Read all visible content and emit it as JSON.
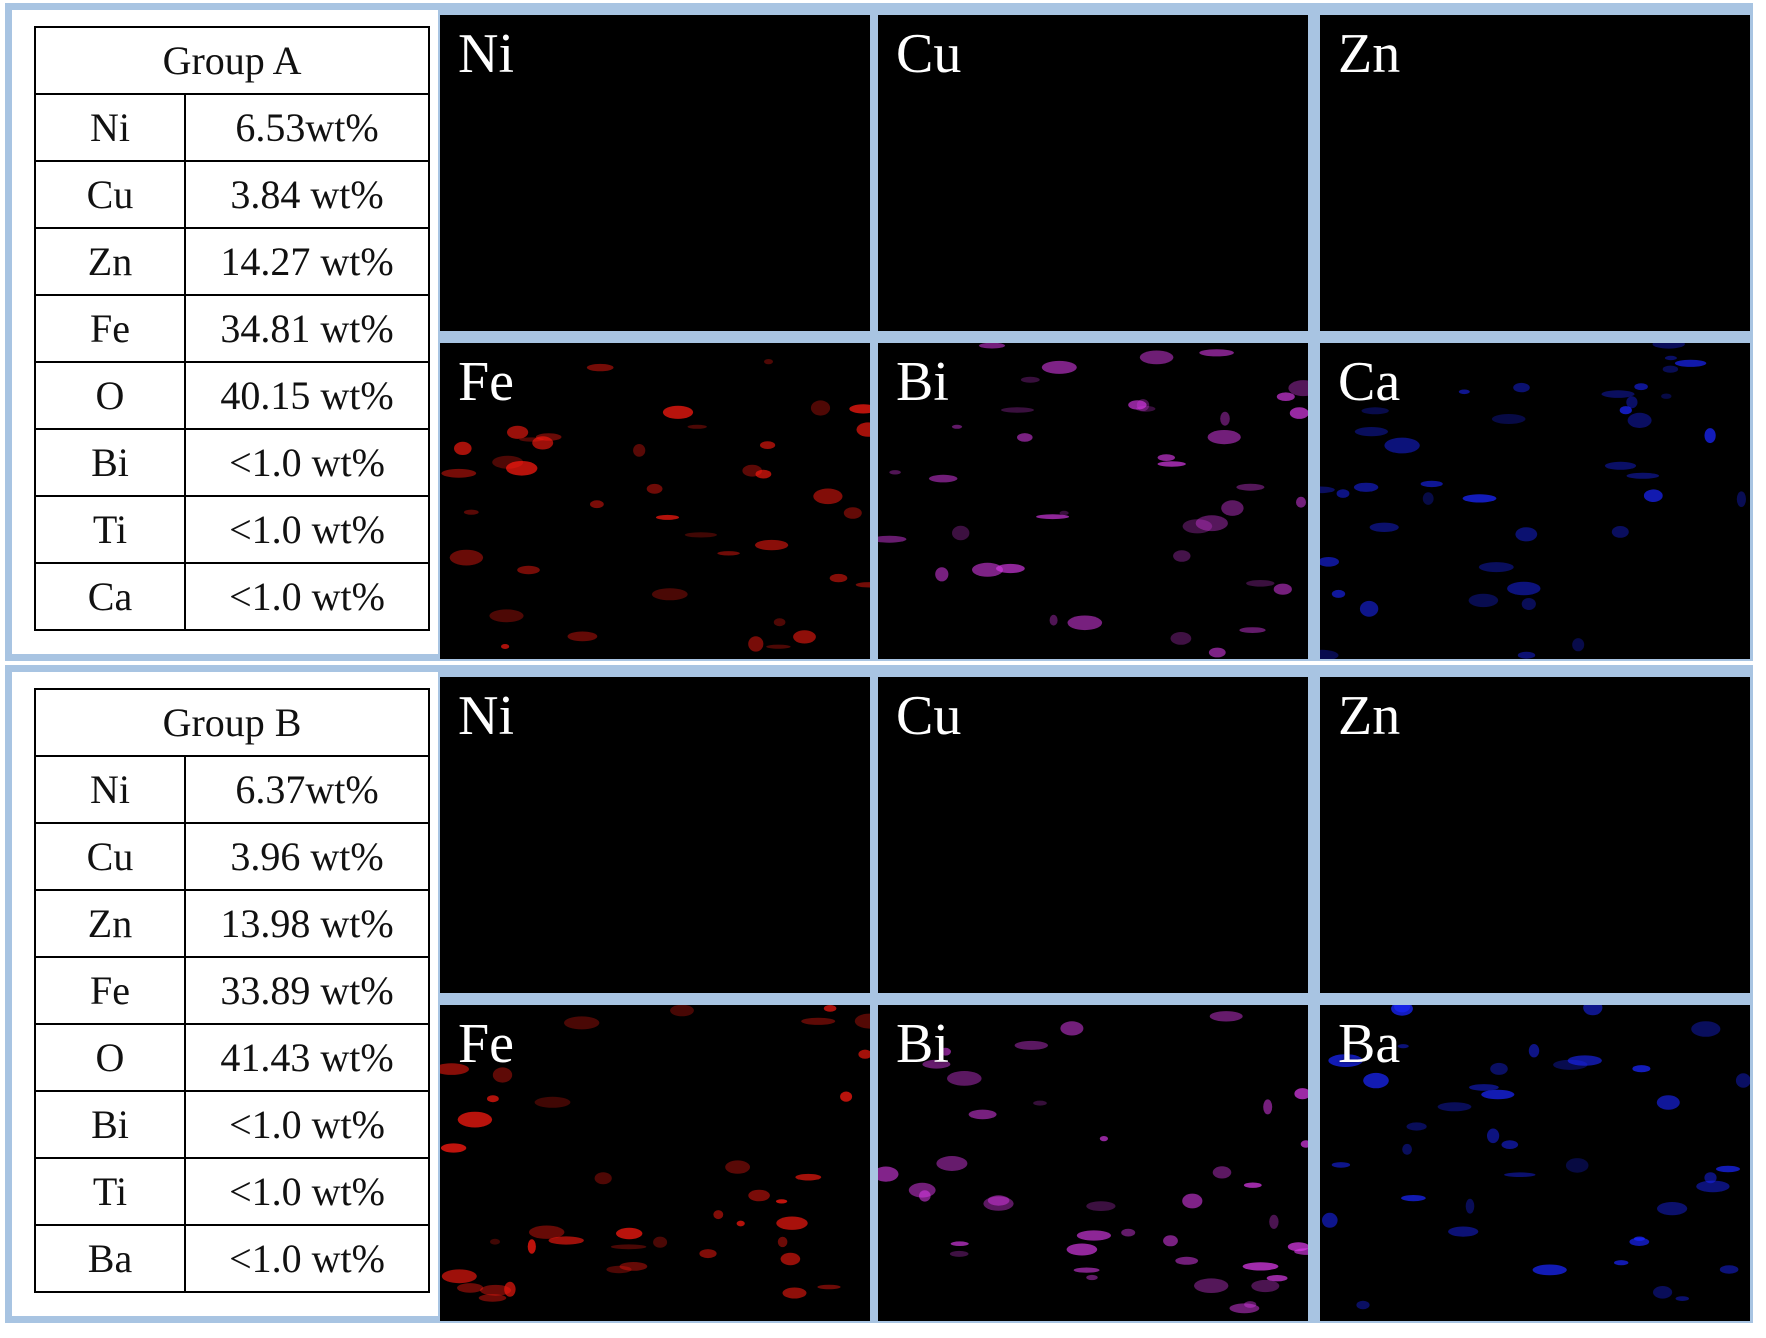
{
  "groups": [
    {
      "title": "Group A",
      "rows": [
        {
          "element": "Ni",
          "value": "6.53wt%"
        },
        {
          "element": "Cu",
          "value": "3.84 wt%"
        },
        {
          "element": "Zn",
          "value": "14.27 wt%"
        },
        {
          "element": "Fe",
          "value": "34.81 wt%"
        },
        {
          "element": "O",
          "value": "40.15 wt%"
        },
        {
          "element": "Bi",
          "value": "<1.0 wt%"
        },
        {
          "element": "Ti",
          "value": "<1.0 wt%"
        },
        {
          "element": "Ca",
          "value": "<1.0 wt%"
        }
      ],
      "maps": [
        {
          "label": "Ni",
          "color": "#f2ea1e"
        },
        {
          "label": "Cu",
          "color": "#88d616"
        },
        {
          "label": "Zn",
          "color": "#33d6d6"
        },
        {
          "label": "Fe",
          "color": "#ff1a10"
        },
        {
          "label": "Bi",
          "color": "#d83ae6"
        },
        {
          "label": "Ca",
          "color": "#1a26ff"
        }
      ]
    },
    {
      "title": "Group B",
      "rows": [
        {
          "element": "Ni",
          "value": "6.37wt%"
        },
        {
          "element": "Cu",
          "value": "3.96 wt%"
        },
        {
          "element": "Zn",
          "value": "13.98 wt%"
        },
        {
          "element": "Fe",
          "value": "33.89 wt%"
        },
        {
          "element": "O",
          "value": "41.43 wt%"
        },
        {
          "element": "Bi",
          "value": "<1.0 wt%"
        },
        {
          "element": "Ti",
          "value": "<1.0 wt%"
        },
        {
          "element": "Ba",
          "value": "<1.0 wt%"
        }
      ],
      "maps": [
        {
          "label": "Ni",
          "color": "#f2ea1e"
        },
        {
          "label": "Cu",
          "color": "#88d616"
        },
        {
          "label": "Zn",
          "color": "#33d6d6"
        },
        {
          "label": "Fe",
          "color": "#ff1a10"
        },
        {
          "label": "Bi",
          "color": "#d83ae6"
        },
        {
          "label": "Ba",
          "color": "#1a26ff"
        }
      ]
    }
  ],
  "frame_color": "#a8c4e2"
}
